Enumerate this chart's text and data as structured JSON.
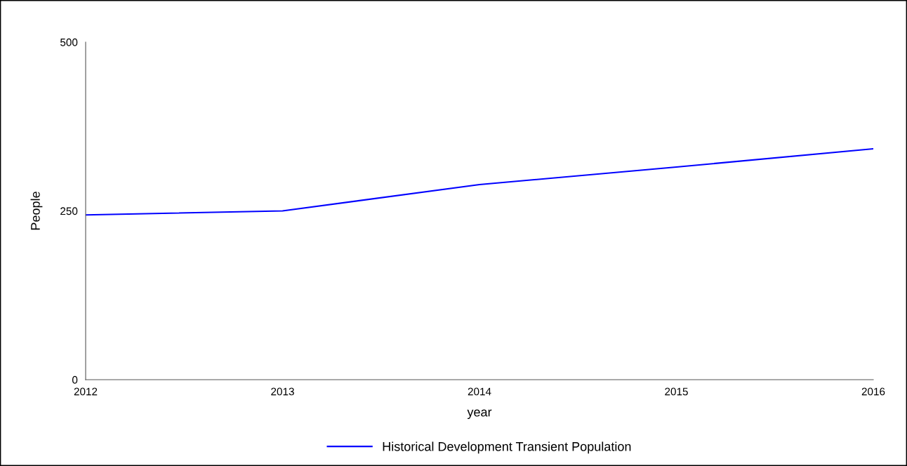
{
  "chart_data": {
    "type": "line",
    "xlabel": "year",
    "ylabel": "People",
    "x": [
      2012,
      2013,
      2014,
      2015,
      2016
    ],
    "series": [
      {
        "name": "Historical Development Transient Population",
        "color": "#0000ff",
        "values": [
          244,
          250,
          289,
          315,
          342
        ]
      }
    ],
    "xlim": [
      2012,
      2016
    ],
    "xticks": [
      2012,
      2013,
      2014,
      2015,
      2016
    ],
    "ylim": [
      0,
      500
    ],
    "yticks": [
      0,
      250,
      500
    ],
    "grid": false,
    "legend": "bottom",
    "marker": "none",
    "line_style": "solid"
  }
}
